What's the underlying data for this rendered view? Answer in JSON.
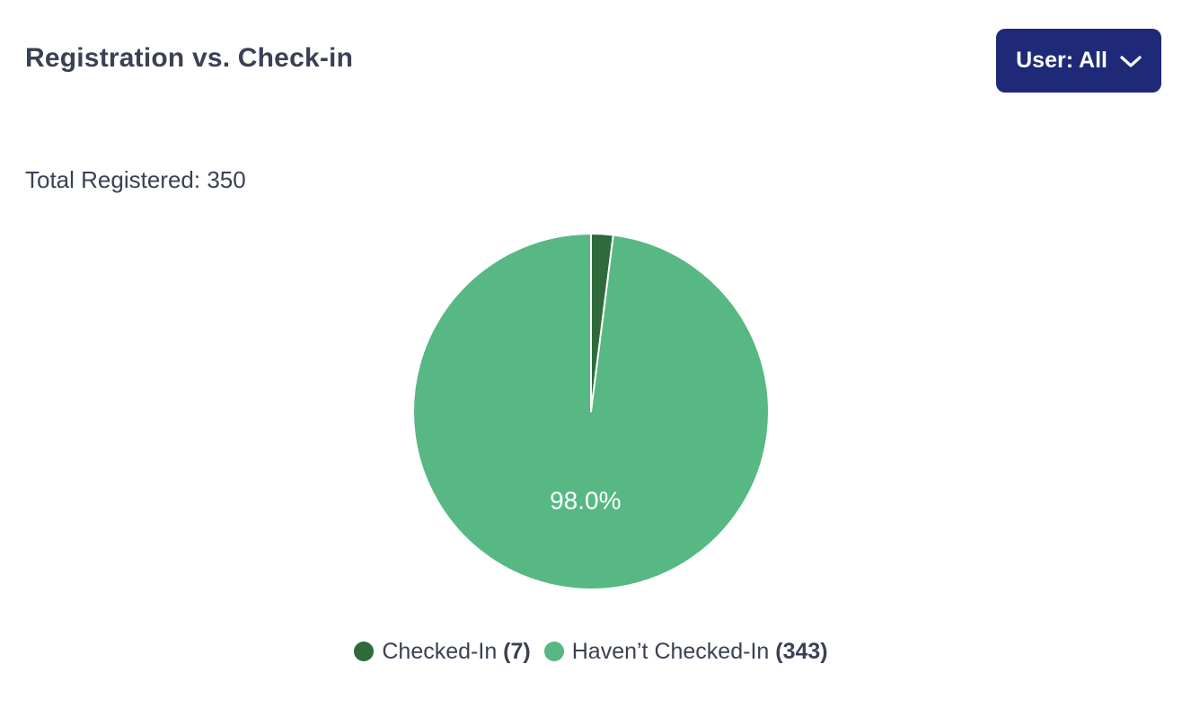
{
  "header": {
    "title": "Registration vs. Check-in",
    "user_filter_label": "User: All",
    "user_filter_icon": "chevron-down-icon"
  },
  "summary": {
    "total_registered_text": "Total Registered: 350"
  },
  "chart_data": {
    "type": "pie",
    "title": "Registration vs. Check-in",
    "total_registered": 350,
    "slices": [
      {
        "label": "Checked-In",
        "value": 7,
        "percent": 2.0,
        "color": "#2e6a3b",
        "data_label": null
      },
      {
        "label": "Haven’t Checked-In",
        "value": 343,
        "percent": 98.0,
        "color": "#57b884",
        "data_label": "98.0%"
      }
    ],
    "start_angle_deg": 0,
    "direction": "clockwise",
    "slice_border_color": "#ffffff",
    "slice_border_width": 2,
    "data_label_color": "#ffffff",
    "legend_position": "bottom"
  },
  "colors": {
    "accent_navy": "#1e2a77",
    "text_dark": "#3b4154",
    "checked_in_green": "#2e6a3b",
    "not_checked_in_green": "#57b884",
    "background": "#ffffff"
  }
}
